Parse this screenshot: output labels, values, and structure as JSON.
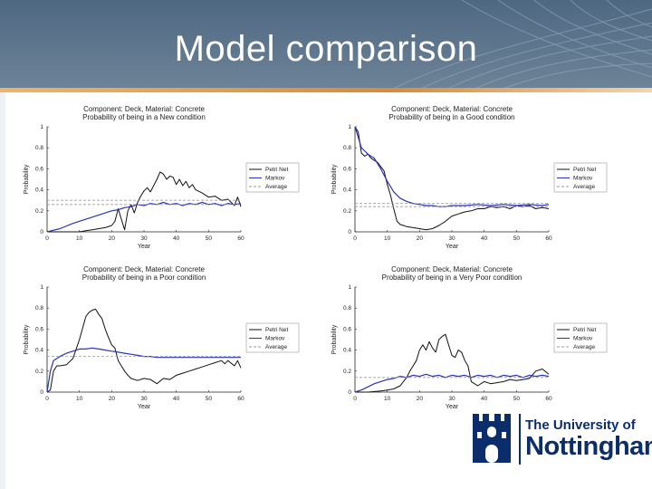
{
  "slide": {
    "title": "Model comparison"
  },
  "logo": {
    "line1": "The University of",
    "line2": "Nottingham"
  },
  "colors": {
    "petri": "#111111",
    "markov": "#2a34b8",
    "average": "#9a9a9a",
    "brand": "#0b2d6b"
  },
  "chart_data": [
    {
      "type": "line",
      "title": "Component: Deck, Material: Concrete",
      "subtitle": "Probability of being in a New condition",
      "xlabel": "Year",
      "ylabel": "Probability",
      "xlim": [
        0,
        60
      ],
      "ylim": [
        0,
        1
      ],
      "xticks": [
        0,
        10,
        20,
        30,
        40,
        50,
        60
      ],
      "yticks": [
        0,
        0.2,
        0.4,
        0.6,
        0.8,
        1
      ],
      "legend": "right",
      "series": [
        {
          "name": "Petri Net",
          "x": [
            0,
            4,
            8,
            10,
            12,
            14,
            16,
            18,
            20,
            21,
            22,
            24,
            25,
            26,
            27,
            28,
            29,
            30,
            31,
            32,
            33,
            34,
            35,
            36,
            37,
            38,
            39,
            40,
            41,
            42,
            43,
            44,
            45,
            46,
            48,
            50,
            52,
            54,
            56,
            58,
            59,
            60
          ],
          "y": [
            0,
            0,
            0,
            0,
            0.01,
            0.02,
            0.03,
            0.04,
            0.06,
            0.1,
            0.22,
            0.02,
            0.2,
            0.26,
            0.18,
            0.28,
            0.34,
            0.39,
            0.42,
            0.38,
            0.44,
            0.5,
            0.57,
            0.55,
            0.5,
            0.53,
            0.52,
            0.45,
            0.5,
            0.44,
            0.48,
            0.42,
            0.45,
            0.4,
            0.37,
            0.33,
            0.34,
            0.3,
            0.31,
            0.25,
            0.33,
            0.24
          ]
        },
        {
          "name": "Markov",
          "x": [
            0,
            4,
            8,
            12,
            16,
            20,
            22,
            24,
            26,
            28,
            30,
            32,
            34,
            36,
            38,
            40,
            42,
            44,
            46,
            48,
            50,
            52,
            54,
            56,
            58,
            60
          ],
          "y": [
            0,
            0.03,
            0.08,
            0.12,
            0.16,
            0.2,
            0.21,
            0.23,
            0.24,
            0.26,
            0.25,
            0.27,
            0.26,
            0.28,
            0.26,
            0.27,
            0.25,
            0.27,
            0.26,
            0.28,
            0.26,
            0.27,
            0.25,
            0.27,
            0.26,
            0.27
          ]
        },
        {
          "name": "Average",
          "x": [
            0,
            60
          ],
          "y": [
            0.3,
            0.3
          ]
        },
        {
          "x": [
            0,
            60
          ],
          "y": [
            0.26,
            0.26
          ],
          "style": "average"
        }
      ]
    },
    {
      "type": "line",
      "title": "Component: Deck, Material: Concrete",
      "subtitle": "Probability of being in a Good condition",
      "xlabel": "Year",
      "ylabel": "Probability",
      "xlim": [
        0,
        60
      ],
      "ylim": [
        0,
        1
      ],
      "xticks": [
        0,
        10,
        20,
        30,
        40,
        50,
        60
      ],
      "yticks": [
        0,
        0.2,
        0.4,
        0.6,
        0.8,
        1
      ],
      "legend": "right",
      "series": [
        {
          "name": "Petri Net",
          "x": [
            0,
            1,
            2,
            3,
            4,
            5,
            6,
            7,
            8,
            9,
            10,
            11,
            12,
            13,
            14,
            15,
            16,
            18,
            20,
            22,
            24,
            26,
            28,
            30,
            32,
            34,
            36,
            38,
            40,
            42,
            44,
            46,
            48,
            50,
            52,
            54,
            56,
            58,
            60
          ],
          "y": [
            1,
            0.95,
            0.75,
            0.72,
            0.74,
            0.7,
            0.68,
            0.66,
            0.62,
            0.58,
            0.45,
            0.35,
            0.22,
            0.1,
            0.07,
            0.06,
            0.05,
            0.04,
            0.03,
            0.02,
            0.03,
            0.06,
            0.1,
            0.15,
            0.17,
            0.19,
            0.2,
            0.22,
            0.22,
            0.24,
            0.23,
            0.24,
            0.22,
            0.25,
            0.24,
            0.25,
            0.22,
            0.23,
            0.22
          ]
        },
        {
          "name": "Markov",
          "x": [
            0,
            2,
            4,
            6,
            8,
            10,
            12,
            14,
            16,
            18,
            20,
            22,
            24,
            26,
            28,
            30,
            34,
            38,
            42,
            46,
            50,
            54,
            58,
            60
          ],
          "y": [
            1,
            0.8,
            0.74,
            0.7,
            0.6,
            0.48,
            0.38,
            0.32,
            0.29,
            0.27,
            0.26,
            0.25,
            0.25,
            0.24,
            0.24,
            0.25,
            0.25,
            0.26,
            0.25,
            0.26,
            0.25,
            0.26,
            0.25,
            0.26
          ]
        },
        {
          "name": "Average",
          "x": [
            0,
            60
          ],
          "y": [
            0.24,
            0.24
          ]
        },
        {
          "x": [
            0,
            60
          ],
          "y": [
            0.27,
            0.27
          ],
          "style": "average"
        }
      ]
    },
    {
      "type": "line",
      "title": "Component: Deck, Material: Concrete",
      "subtitle": "Probability of being in a Poor condition",
      "xlabel": "Year",
      "ylabel": "Probability",
      "xlim": [
        0,
        60
      ],
      "ylim": [
        0,
        1
      ],
      "xticks": [
        0,
        10,
        20,
        30,
        40,
        50,
        60
      ],
      "yticks": [
        0,
        0.2,
        0.4,
        0.6,
        0.8,
        1
      ],
      "legend": "right",
      "series": [
        {
          "name": "Petri Net",
          "x": [
            0,
            1,
            2,
            3,
            4,
            6,
            8,
            10,
            12,
            13,
            14,
            15,
            16,
            17,
            18,
            19,
            20,
            21,
            22,
            23,
            24,
            25,
            26,
            28,
            30,
            32,
            34,
            36,
            38,
            40,
            42,
            44,
            46,
            48,
            50,
            52,
            54,
            55,
            56,
            58,
            59,
            60
          ],
          "y": [
            0,
            0.02,
            0.2,
            0.25,
            0.25,
            0.26,
            0.32,
            0.5,
            0.72,
            0.76,
            0.78,
            0.79,
            0.74,
            0.7,
            0.6,
            0.52,
            0.45,
            0.42,
            0.3,
            0.25,
            0.2,
            0.16,
            0.13,
            0.11,
            0.13,
            0.12,
            0.08,
            0.13,
            0.12,
            0.16,
            0.18,
            0.2,
            0.22,
            0.24,
            0.26,
            0.28,
            0.3,
            0.27,
            0.3,
            0.25,
            0.3,
            0.23
          ]
        },
        {
          "name": "Markov",
          "x": [
            0,
            1,
            2,
            4,
            6,
            8,
            10,
            12,
            14,
            16,
            18,
            20,
            22,
            24,
            26,
            28,
            30,
            32,
            34,
            36,
            40,
            44,
            48,
            52,
            56,
            60
          ],
          "y": [
            0,
            0.2,
            0.3,
            0.34,
            0.37,
            0.39,
            0.41,
            0.41,
            0.42,
            0.41,
            0.4,
            0.39,
            0.38,
            0.37,
            0.36,
            0.35,
            0.34,
            0.34,
            0.33,
            0.33,
            0.33,
            0.33,
            0.33,
            0.33,
            0.33,
            0.33
          ]
        },
        {
          "name": "Average",
          "x": [
            0,
            60
          ],
          "y": [
            0.34,
            0.34
          ]
        }
      ]
    },
    {
      "type": "line",
      "title": "Component: Deck, Material: Concrete",
      "subtitle": "Probability of being in a Very Poor condition",
      "xlabel": "Year",
      "ylabel": "Probability",
      "xlim": [
        0,
        60
      ],
      "ylim": [
        0,
        1
      ],
      "xticks": [
        0,
        10,
        20,
        30,
        40,
        50,
        60
      ],
      "yticks": [
        0,
        0.2,
        0.4,
        0.6,
        0.8,
        1
      ],
      "legend": "right",
      "series": [
        {
          "name": "Petri Net",
          "x": [
            0,
            4,
            8,
            10,
            12,
            14,
            15,
            16,
            17,
            18,
            19,
            20,
            21,
            22,
            23,
            24,
            25,
            26,
            27,
            28,
            29,
            30,
            31,
            32,
            33,
            34,
            35,
            36,
            37,
            38,
            40,
            42,
            44,
            46,
            48,
            50,
            52,
            54,
            56,
            58,
            60
          ],
          "y": [
            0,
            0,
            0.01,
            0.02,
            0.03,
            0.06,
            0.1,
            0.14,
            0.2,
            0.25,
            0.3,
            0.4,
            0.45,
            0.4,
            0.48,
            0.42,
            0.38,
            0.5,
            0.53,
            0.55,
            0.45,
            0.35,
            0.33,
            0.4,
            0.38,
            0.3,
            0.25,
            0.1,
            0.08,
            0.06,
            0.1,
            0.08,
            0.09,
            0.1,
            0.12,
            0.11,
            0.12,
            0.13,
            0.2,
            0.22,
            0.17
          ]
        },
        {
          "name": "Markov",
          "x": [
            0,
            2,
            4,
            6,
            8,
            10,
            12,
            14,
            16,
            18,
            20,
            22,
            24,
            26,
            28,
            30,
            32,
            34,
            36,
            38,
            40,
            42,
            44,
            46,
            48,
            50,
            52,
            54,
            56,
            58,
            60
          ],
          "y": [
            0,
            0.02,
            0.05,
            0.08,
            0.1,
            0.12,
            0.13,
            0.15,
            0.14,
            0.16,
            0.15,
            0.17,
            0.15,
            0.16,
            0.14,
            0.16,
            0.15,
            0.16,
            0.14,
            0.16,
            0.15,
            0.16,
            0.14,
            0.16,
            0.15,
            0.16,
            0.14,
            0.16,
            0.15,
            0.16,
            0.15
          ]
        },
        {
          "name": "Average",
          "x": [
            0,
            60
          ],
          "y": [
            0.14,
            0.14
          ]
        }
      ]
    }
  ]
}
